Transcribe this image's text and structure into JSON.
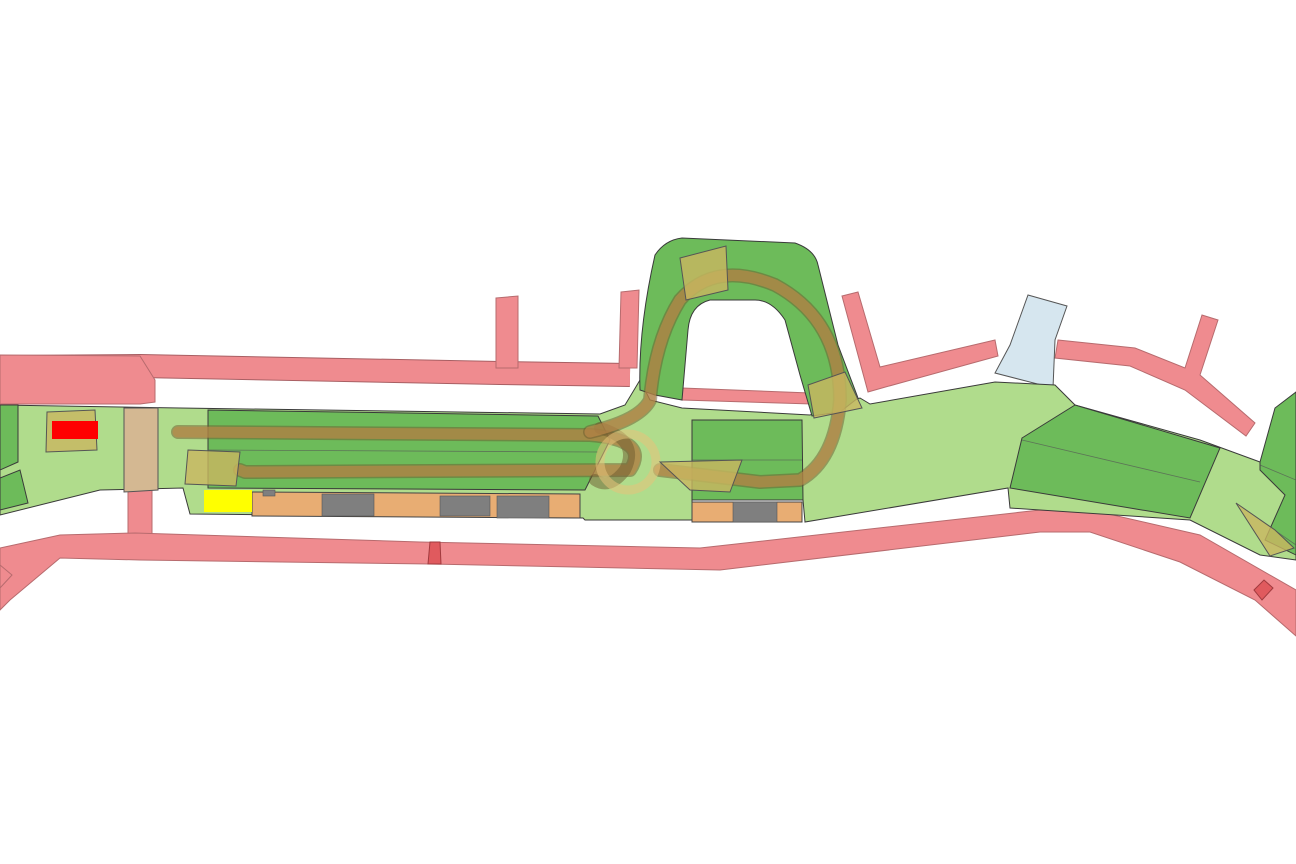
{
  "map": {
    "colors": {
      "road": "#ef8b8f",
      "park_light": "#b0dc8c",
      "park_dark": "#6dbb5a",
      "track": "#c08a4a",
      "building": "#e8ad73",
      "water": "#d6e6ef",
      "marker_red": "#ff0000",
      "marker_yellow": "#ffff00",
      "background": "#ffffff"
    },
    "features": [
      "roads",
      "park-areas",
      "trail-loop",
      "buildings",
      "parking-blocks",
      "water-area",
      "markers"
    ]
  }
}
